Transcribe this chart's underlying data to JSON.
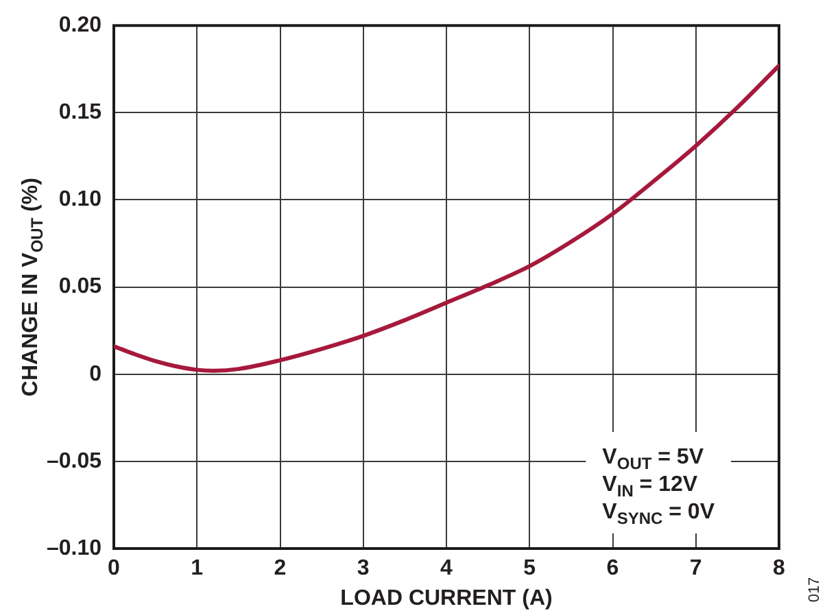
{
  "chart_data": {
    "type": "line",
    "xlabel": "LOAD CURRENT (A)",
    "ylabel": "CHANGE IN V$_{OUT}$ (%)",
    "x": [
      0,
      0.25,
      0.5,
      0.75,
      1,
      1.2,
      1.5,
      2,
      2.5,
      3,
      3.5,
      4,
      4.5,
      5,
      5.5,
      6,
      6.5,
      7,
      7.5,
      8
    ],
    "series": [
      {
        "color": "#a6193c",
        "values": [
          0.016,
          0.0115,
          0.0075,
          0.0045,
          0.0025,
          0.002,
          0.003,
          0.008,
          0.0145,
          0.022,
          0.031,
          0.041,
          0.051,
          0.062,
          0.076,
          0.092,
          0.111,
          0.131,
          0.153,
          0.177
        ]
      }
    ],
    "xlim": [
      0,
      8
    ],
    "ylim": [
      -0.1,
      0.2
    ],
    "xticks": [
      0,
      1,
      2,
      3,
      4,
      5,
      6,
      7,
      8
    ],
    "yticks": [
      {
        "value": -0.1,
        "label": "–0.10"
      },
      {
        "value": -0.05,
        "label": "–0.05"
      },
      0,
      {
        "value": 0.05,
        "label": "0.05"
      },
      {
        "value": 0.1,
        "label": "0.10"
      },
      {
        "value": 0.15,
        "label": "0.15"
      },
      {
        "value": 0.2,
        "label": "0.20"
      }
    ],
    "grid": true,
    "marker": "none",
    "line_style": "solid",
    "annotations": [
      "V$_{OUT}$ = 5V",
      "V$_{IN}$ = 12V",
      "V$_{SYNC}$ = 0V",
      "017"
    ]
  }
}
